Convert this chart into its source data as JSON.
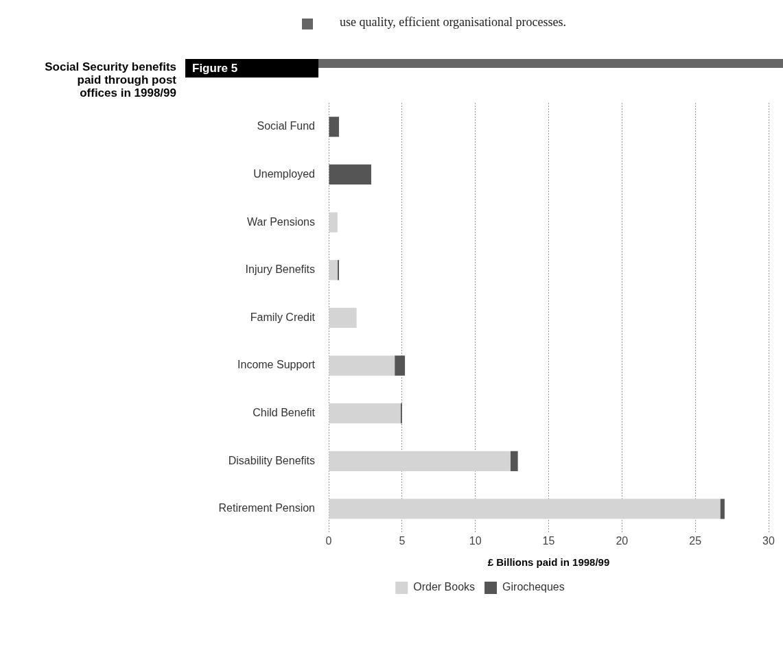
{
  "chart_data": {
    "type": "bar",
    "orientation": "horizontal",
    "stacked": true,
    "title": "Social Security benefits paid through post offices in 1998/99",
    "subtitle": "Figure 5",
    "annotations": [
      "use quality, efficient organisational processes."
    ],
    "xlabel": "£ Billions paid in 1998/99",
    "categories": [
      "Social Fund",
      "Unemployed",
      "War Pensions",
      "Injury Benefits",
      "Family Credit",
      "Income Support",
      "Child Benefit",
      "Disability Benefits",
      "Retirement Pension"
    ],
    "series": [
      {
        "name": "Order Books",
        "color": "#d4d4d4",
        "values": [
          0,
          0,
          0.6,
          0.6,
          1.9,
          4.5,
          4.9,
          12.4,
          26.7
        ]
      },
      {
        "name": "Girocheques",
        "color": "#555555",
        "values": [
          0.7,
          2.9,
          0,
          0.1,
          0,
          0.7,
          0.1,
          0.5,
          0.3
        ]
      }
    ],
    "xlim": [
      0,
      30
    ],
    "xticks": [
      0,
      5,
      10,
      15,
      20,
      25,
      30
    ],
    "grid": "x",
    "legend": "bottom"
  }
}
